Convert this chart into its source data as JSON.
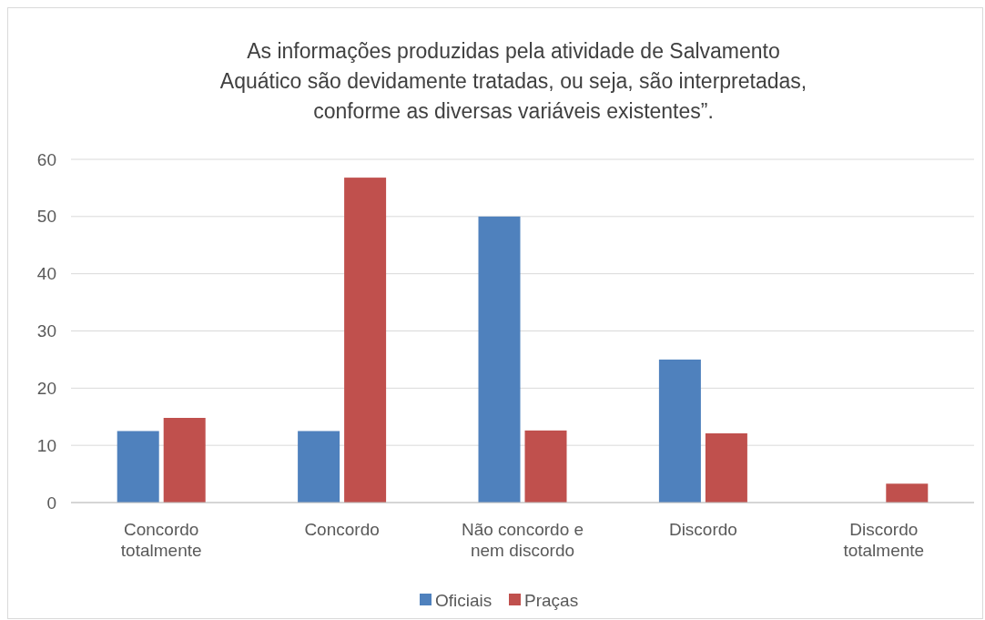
{
  "chart_data": {
    "type": "bar",
    "title": "As informações produzidas pela atividade de Salvamento\nAquático são devidamente tratadas, ou seja, são interpretadas,\nconforme as diversas variáveis existentes”.",
    "categories": [
      "Concordo\ntotalmente",
      "Concordo",
      "Não concordo e\nnem discordo",
      "Discordo",
      "Discordo\ntotalmente"
    ],
    "series": [
      {
        "name": "Oficiais",
        "color": "#4f81bd",
        "values": [
          12.5,
          12.5,
          50,
          25,
          0
        ]
      },
      {
        "name": "Praças",
        "color": "#c0504d",
        "values": [
          14.8,
          56.8,
          12.6,
          12.1,
          3.3
        ]
      }
    ],
    "ylim": [
      0,
      60
    ],
    "yticks": [
      0,
      10,
      20,
      30,
      40,
      50,
      60
    ],
    "grid": "y",
    "legend": "bottom"
  }
}
